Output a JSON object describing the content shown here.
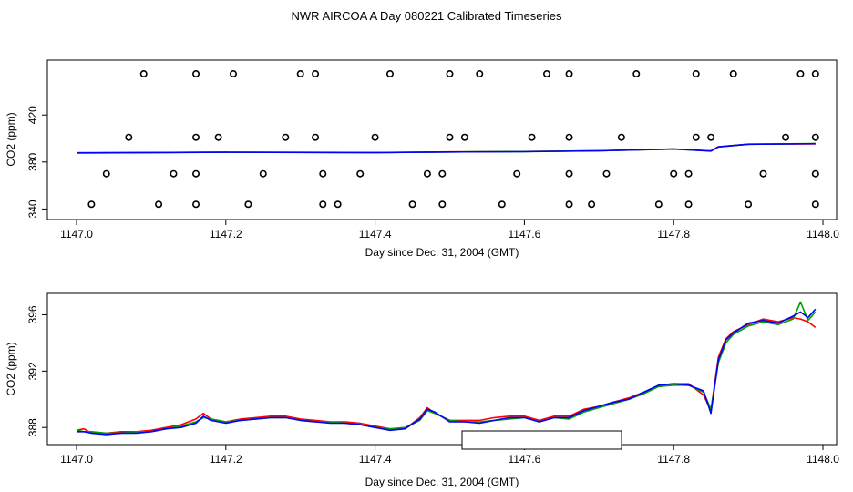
{
  "title": "NWR AIRCOA A  Day 080221  Calibrated Timeseries",
  "colors": {
    "red": "#ff0000",
    "green": "#00a000",
    "blue": "#0000ff",
    "axis": "#000000"
  },
  "chart_data": [
    {
      "type": "scatter",
      "xlabel": "Day since Dec. 31, 2004 (GMT)",
      "ylabel": "CO2 (ppm)",
      "xlim": [
        1147.0,
        1148.0
      ],
      "ylim": [
        338,
        462
      ],
      "xticks": [
        "1147.0",
        "1147.2",
        "1147.4",
        "1147.6",
        "1147.8",
        "1148.0"
      ],
      "xtick_values": [
        1147.0,
        1147.2,
        1147.4,
        1147.6,
        1147.8,
        1148.0
      ],
      "yticks": [
        "340",
        "380",
        "420"
      ],
      "ytick_values": [
        340,
        380,
        420
      ],
      "grid": false,
      "points": [
        [
          1147.09,
          455
        ],
        [
          1147.16,
          455
        ],
        [
          1147.21,
          455
        ],
        [
          1147.3,
          455
        ],
        [
          1147.32,
          455
        ],
        [
          1147.42,
          455
        ],
        [
          1147.5,
          455
        ],
        [
          1147.54,
          455
        ],
        [
          1147.63,
          455
        ],
        [
          1147.66,
          455
        ],
        [
          1147.75,
          455
        ],
        [
          1147.83,
          455
        ],
        [
          1147.88,
          455
        ],
        [
          1147.97,
          455
        ],
        [
          1147.99,
          455
        ],
        [
          1147.07,
          401
        ],
        [
          1147.16,
          401
        ],
        [
          1147.19,
          401
        ],
        [
          1147.28,
          401
        ],
        [
          1147.32,
          401
        ],
        [
          1147.4,
          401
        ],
        [
          1147.5,
          401
        ],
        [
          1147.52,
          401
        ],
        [
          1147.61,
          401
        ],
        [
          1147.66,
          401
        ],
        [
          1147.73,
          401
        ],
        [
          1147.83,
          401
        ],
        [
          1147.85,
          401
        ],
        [
          1147.95,
          401
        ],
        [
          1147.99,
          401
        ],
        [
          1147.04,
          370
        ],
        [
          1147.13,
          370
        ],
        [
          1147.16,
          370
        ],
        [
          1147.25,
          370
        ],
        [
          1147.33,
          370
        ],
        [
          1147.38,
          370
        ],
        [
          1147.47,
          370
        ],
        [
          1147.49,
          370
        ],
        [
          1147.59,
          370
        ],
        [
          1147.66,
          370
        ],
        [
          1147.71,
          370
        ],
        [
          1147.8,
          370
        ],
        [
          1147.82,
          370
        ],
        [
          1147.92,
          370
        ],
        [
          1147.99,
          370
        ],
        [
          1147.02,
          344
        ],
        [
          1147.11,
          344
        ],
        [
          1147.16,
          344
        ],
        [
          1147.23,
          344
        ],
        [
          1147.33,
          344
        ],
        [
          1147.35,
          344
        ],
        [
          1147.45,
          344
        ],
        [
          1147.49,
          344
        ],
        [
          1147.57,
          344
        ],
        [
          1147.66,
          344
        ],
        [
          1147.69,
          344
        ],
        [
          1147.78,
          344
        ],
        [
          1147.82,
          344
        ],
        [
          1147.9,
          344
        ],
        [
          1147.99,
          344
        ]
      ],
      "series": [
        {
          "color": "#ff0000",
          "x": [
            1147.0,
            1147.2,
            1147.4,
            1147.5,
            1147.6,
            1147.7,
            1147.8,
            1147.85,
            1147.86,
            1147.9,
            1147.99
          ],
          "y": [
            387.8,
            388.4,
            388.1,
            388.6,
            388.9,
            389.6,
            391.1,
            389.5,
            393.0,
            395.2,
            395.4
          ]
        },
        {
          "color": "#00a000",
          "x": [
            1147.0,
            1147.2,
            1147.4,
            1147.5,
            1147.6,
            1147.7,
            1147.8,
            1147.85,
            1147.86,
            1147.9,
            1147.99
          ],
          "y": [
            387.8,
            388.3,
            388.1,
            388.5,
            388.9,
            389.5,
            391.0,
            389.4,
            392.8,
            395.1,
            395.7
          ]
        },
        {
          "color": "#0000ff",
          "x": [
            1147.0,
            1147.2,
            1147.4,
            1147.5,
            1147.6,
            1147.7,
            1147.8,
            1147.85,
            1147.86,
            1147.9,
            1147.99
          ],
          "y": [
            387.7,
            388.3,
            388.0,
            388.5,
            388.8,
            389.5,
            391.0,
            389.3,
            392.9,
            395.1,
            395.6
          ]
        }
      ]
    },
    {
      "type": "line",
      "xlabel": "Day since Dec. 31, 2004 (GMT)",
      "ylabel": "CO2 (ppm)",
      "xlim": [
        1147.0,
        1148.0
      ],
      "ylim": [
        387.3,
        397.0
      ],
      "xticks": [
        "1147.0",
        "1147.2",
        "1147.4",
        "1147.6",
        "1147.8",
        "1148.0"
      ],
      "xtick_values": [
        1147.0,
        1147.2,
        1147.4,
        1147.6,
        1147.8,
        1148.0
      ],
      "yticks": [
        "388",
        "392",
        "396"
      ],
      "ytick_values": [
        388,
        392,
        396
      ],
      "grid": false,
      "series": [
        {
          "color": "#ff0000",
          "x": [
            1147.0,
            1147.01,
            1147.02,
            1147.04,
            1147.06,
            1147.08,
            1147.1,
            1147.12,
            1147.14,
            1147.16,
            1147.17,
            1147.18,
            1147.2,
            1147.22,
            1147.24,
            1147.26,
            1147.28,
            1147.3,
            1147.32,
            1147.34,
            1147.36,
            1147.38,
            1147.4,
            1147.42,
            1147.44,
            1147.46,
            1147.47,
            1147.48,
            1147.5,
            1147.52,
            1147.54,
            1147.56,
            1147.58,
            1147.6,
            1147.62,
            1147.64,
            1147.66,
            1147.68,
            1147.7,
            1147.72,
            1147.74,
            1147.76,
            1147.78,
            1147.8,
            1147.82,
            1147.84,
            1147.85,
            1147.86,
            1147.87,
            1147.88,
            1147.9,
            1147.92,
            1147.94,
            1147.96,
            1147.97,
            1147.98,
            1147.99
          ],
          "y": [
            387.8,
            387.9,
            387.6,
            387.6,
            387.7,
            387.7,
            387.8,
            388.0,
            388.2,
            388.6,
            389.0,
            388.6,
            388.4,
            388.6,
            388.7,
            388.8,
            388.8,
            388.6,
            388.5,
            388.4,
            388.4,
            388.3,
            388.1,
            387.9,
            387.9,
            388.7,
            389.4,
            389.0,
            388.5,
            388.5,
            388.5,
            388.7,
            388.8,
            388.8,
            388.5,
            388.8,
            388.8,
            389.3,
            389.5,
            389.8,
            390.1,
            390.5,
            391.0,
            391.1,
            391.1,
            390.3,
            389.2,
            393.0,
            394.3,
            394.8,
            395.3,
            395.7,
            395.5,
            395.8,
            395.7,
            395.5,
            395.1
          ]
        },
        {
          "color": "#00a000",
          "x": [
            1147.0,
            1147.01,
            1147.02,
            1147.04,
            1147.06,
            1147.08,
            1147.1,
            1147.12,
            1147.14,
            1147.16,
            1147.17,
            1147.18,
            1147.2,
            1147.22,
            1147.24,
            1147.26,
            1147.28,
            1147.3,
            1147.32,
            1147.34,
            1147.36,
            1147.38,
            1147.4,
            1147.42,
            1147.44,
            1147.46,
            1147.47,
            1147.48,
            1147.5,
            1147.52,
            1147.54,
            1147.56,
            1147.58,
            1147.6,
            1147.62,
            1147.64,
            1147.66,
            1147.68,
            1147.7,
            1147.72,
            1147.74,
            1147.76,
            1147.78,
            1147.8,
            1147.82,
            1147.84,
            1147.85,
            1147.86,
            1147.87,
            1147.88,
            1147.9,
            1147.92,
            1147.94,
            1147.96,
            1147.97,
            1147.98,
            1147.99
          ],
          "y": [
            387.8,
            387.7,
            387.7,
            387.6,
            387.6,
            387.7,
            387.7,
            387.9,
            388.1,
            388.4,
            388.7,
            388.6,
            388.4,
            388.5,
            388.6,
            388.7,
            388.7,
            388.5,
            388.4,
            388.4,
            388.3,
            388.2,
            388.0,
            387.9,
            388.0,
            388.5,
            389.2,
            389.0,
            388.5,
            388.4,
            388.4,
            388.5,
            388.6,
            388.7,
            388.4,
            388.7,
            388.6,
            389.1,
            389.4,
            389.7,
            390.0,
            390.4,
            390.9,
            391.0,
            391.0,
            390.5,
            389.3,
            392.6,
            394.0,
            394.6,
            395.2,
            395.5,
            395.3,
            395.7,
            396.9,
            395.6,
            396.2
          ]
        },
        {
          "color": "#0000ff",
          "x": [
            1147.0,
            1147.01,
            1147.02,
            1147.04,
            1147.06,
            1147.08,
            1147.1,
            1147.12,
            1147.14,
            1147.16,
            1147.17,
            1147.18,
            1147.2,
            1147.22,
            1147.24,
            1147.26,
            1147.28,
            1147.3,
            1147.32,
            1147.34,
            1147.36,
            1147.38,
            1147.4,
            1147.42,
            1147.44,
            1147.46,
            1147.47,
            1147.48,
            1147.5,
            1147.52,
            1147.54,
            1147.56,
            1147.58,
            1147.6,
            1147.62,
            1147.64,
            1147.66,
            1147.68,
            1147.7,
            1147.72,
            1147.74,
            1147.76,
            1147.78,
            1147.8,
            1147.82,
            1147.84,
            1147.85,
            1147.86,
            1147.87,
            1147.88,
            1147.9,
            1147.92,
            1147.94,
            1147.96,
            1147.97,
            1147.98,
            1147.99
          ],
          "y": [
            387.7,
            387.7,
            387.6,
            387.5,
            387.6,
            387.6,
            387.7,
            387.9,
            388.0,
            388.3,
            388.8,
            388.5,
            388.3,
            388.5,
            388.6,
            388.7,
            388.7,
            388.5,
            388.4,
            388.3,
            388.3,
            388.2,
            388.0,
            387.8,
            387.9,
            388.6,
            389.3,
            389.1,
            388.4,
            388.4,
            388.3,
            388.5,
            388.7,
            388.7,
            388.4,
            388.7,
            388.7,
            389.2,
            389.5,
            389.8,
            390.0,
            390.5,
            391.0,
            391.1,
            391.0,
            390.6,
            389.0,
            392.8,
            394.2,
            394.7,
            395.4,
            395.6,
            395.4,
            395.9,
            396.2,
            395.8,
            396.4
          ]
        }
      ]
    }
  ]
}
